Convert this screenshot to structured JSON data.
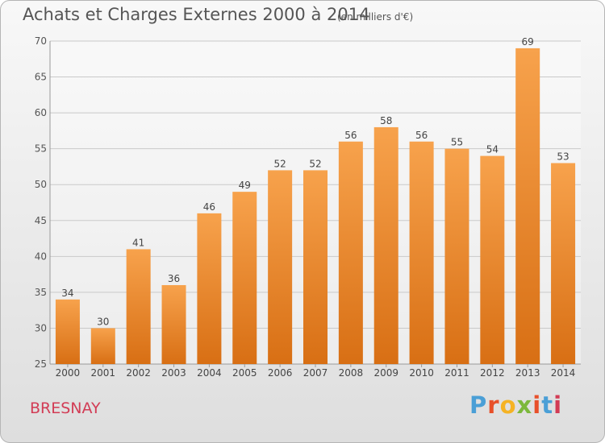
{
  "chart_data": {
    "type": "bar",
    "title": "Achats et Charges Externes 2000 à 2014",
    "subtitle": "(en milliers d'€)",
    "categories": [
      "2000",
      "2001",
      "2002",
      "2003",
      "2004",
      "2005",
      "2006",
      "2007",
      "2008",
      "2009",
      "2010",
      "2011",
      "2012",
      "2013",
      "2014"
    ],
    "values": [
      34,
      30,
      41,
      36,
      46,
      49,
      52,
      52,
      56,
      58,
      56,
      55,
      54,
      69,
      53
    ],
    "ylim": [
      25,
      70
    ],
    "yticks": [
      25,
      30,
      35,
      40,
      45,
      50,
      55,
      60,
      65,
      70
    ],
    "grid": true,
    "bar_color": "#f0892c",
    "xlabel": "",
    "ylabel": ""
  },
  "footer": {
    "municipality": "BRESNAY",
    "brand": "Proxiti",
    "brand_colors": [
      "#4a9fd6",
      "#e8502a",
      "#f5b324",
      "#7cb83c",
      "#e8502a",
      "#4a9fd6",
      "#d23c55"
    ]
  }
}
